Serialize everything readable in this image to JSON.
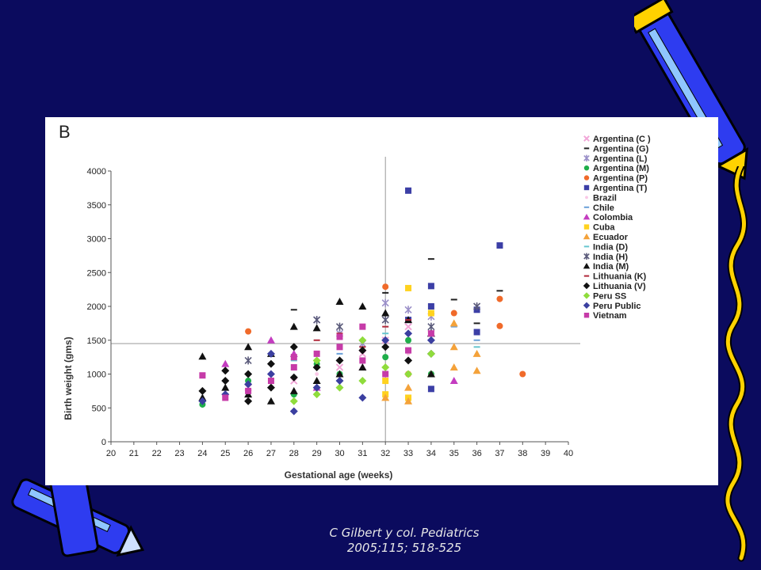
{
  "slide": {
    "background": "#0b0b5e",
    "caption_line1": "C Gilbert y col. Pediatrics",
    "caption_line2": "2005;115; 518-525",
    "decorations": [
      "crayon-pencil-top-right",
      "squiggle-right-yellow",
      "crayon-pencil-bottom-left"
    ]
  },
  "chart_data": {
    "type": "scatter",
    "panel_label": "B",
    "xlabel": "Gestational age (weeks)",
    "ylabel": "Birth weight (gms)",
    "xlim": [
      20,
      40
    ],
    "ylim": [
      0,
      4000
    ],
    "xticks": [
      "20",
      "21",
      "22",
      "23",
      "24",
      "25",
      "26",
      "27",
      "28",
      "29",
      "30",
      "31",
      "32",
      "33",
      "34",
      "35",
      "36",
      "37",
      "38",
      "39",
      "40"
    ],
    "yticks": [
      "0",
      "500",
      "1000",
      "1500",
      "2000",
      "2500",
      "3000",
      "3500",
      "4000"
    ],
    "reference_lines": {
      "vertical_x": 32,
      "horizontal_y": 1450
    },
    "legend_position": "right",
    "series": [
      {
        "name": "Argentina (C )",
        "color": "#f2a6d8",
        "marker": "cross",
        "points": [
          [
            28,
            900
          ],
          [
            30,
            1100
          ],
          [
            31,
            1300
          ],
          [
            32,
            1500
          ],
          [
            33,
            1700
          ],
          [
            34,
            1600
          ],
          [
            26,
            800
          ]
        ]
      },
      {
        "name": "Argentina (G)",
        "color": "#222222",
        "marker": "dash",
        "points": [
          [
            32,
            2200
          ],
          [
            34,
            2700
          ],
          [
            35,
            2100
          ],
          [
            37,
            2230
          ],
          [
            28,
            1950
          ],
          [
            36,
            1750
          ]
        ]
      },
      {
        "name": "Argentina (L)",
        "color": "#9a8fc8",
        "marker": "star",
        "points": [
          [
            32,
            2050
          ],
          [
            29,
            1800
          ],
          [
            33,
            1950
          ],
          [
            30,
            1600
          ],
          [
            34,
            1850
          ],
          [
            31,
            1450
          ]
        ]
      },
      {
        "name": "Argentina (M)",
        "color": "#1fae4a",
        "marker": "circle",
        "points": [
          [
            24,
            550
          ],
          [
            26,
            900
          ],
          [
            28,
            700
          ],
          [
            30,
            1000
          ],
          [
            32,
            1250
          ],
          [
            33,
            1500
          ],
          [
            34,
            1000
          ],
          [
            29,
            1150
          ]
        ]
      },
      {
        "name": "Argentina (P)",
        "color": "#f06a2a",
        "marker": "circle",
        "points": [
          [
            26,
            1630
          ],
          [
            32,
            2290
          ],
          [
            37,
            2110
          ],
          [
            37,
            1710
          ],
          [
            38,
            1000
          ],
          [
            33,
            1000
          ],
          [
            35,
            1900
          ]
        ]
      },
      {
        "name": "Argentina (T)",
        "color": "#3c3fa6",
        "marker": "square",
        "points": [
          [
            33,
            3710
          ],
          [
            37,
            2900
          ],
          [
            34,
            2300
          ],
          [
            36,
            1950
          ],
          [
            34,
            2000
          ],
          [
            34,
            780
          ],
          [
            33,
            1800
          ],
          [
            36,
            1620
          ]
        ]
      },
      {
        "name": "Brazil",
        "color": "#f9c7e6",
        "marker": "dot",
        "points": [
          [
            29,
            1000
          ],
          [
            31,
            1200
          ],
          [
            33,
            1300
          ],
          [
            35,
            1400
          ]
        ]
      },
      {
        "name": "Chile",
        "color": "#6aa0d8",
        "marker": "dash",
        "points": [
          [
            30,
            1300
          ],
          [
            32,
            1400
          ],
          [
            35,
            1700
          ],
          [
            36,
            1500
          ]
        ]
      },
      {
        "name": "Colombia",
        "color": "#c43cc0",
        "marker": "triangle",
        "points": [
          [
            25,
            1150
          ],
          [
            27,
            1500
          ],
          [
            28,
            1300
          ],
          [
            35,
            900
          ],
          [
            31,
            1100
          ],
          [
            29,
            800
          ]
        ]
      },
      {
        "name": "Cuba",
        "color": "#ffd21f",
        "marker": "square",
        "points": [
          [
            33,
            2270
          ],
          [
            32,
            700
          ],
          [
            33,
            650
          ],
          [
            34,
            1900
          ],
          [
            32,
            900
          ]
        ]
      },
      {
        "name": "Ecuador",
        "color": "#f4a23a",
        "marker": "triangle",
        "points": [
          [
            32,
            650
          ],
          [
            33,
            600
          ],
          [
            33,
            800
          ],
          [
            34,
            1000
          ],
          [
            35,
            1100
          ],
          [
            35,
            1400
          ],
          [
            36,
            1050
          ],
          [
            36,
            1300
          ],
          [
            35,
            1750
          ]
        ]
      },
      {
        "name": "India (D)",
        "color": "#67c6cf",
        "marker": "dash",
        "points": [
          [
            28,
            1200
          ],
          [
            30,
            1400
          ],
          [
            32,
            1600
          ],
          [
            34,
            1500
          ],
          [
            36,
            1400
          ]
        ]
      },
      {
        "name": "India (H)",
        "color": "#5a5a7a",
        "marker": "star",
        "points": [
          [
            26,
            1200
          ],
          [
            29,
            1800
          ],
          [
            30,
            1700
          ],
          [
            32,
            1800
          ],
          [
            36,
            2000
          ],
          [
            34,
            1700
          ]
        ]
      },
      {
        "name": "India (M)",
        "color": "#111111",
        "marker": "triangle",
        "points": [
          [
            24,
            1260
          ],
          [
            26,
            1400
          ],
          [
            27,
            1300
          ],
          [
            28,
            1700
          ],
          [
            29,
            1680
          ],
          [
            30,
            2070
          ],
          [
            31,
            2000
          ],
          [
            32,
            1900
          ],
          [
            33,
            1800
          ],
          [
            34,
            1600
          ],
          [
            24,
            650
          ],
          [
            25,
            800
          ],
          [
            26,
            700
          ],
          [
            27,
            600
          ],
          [
            28,
            750
          ],
          [
            29,
            900
          ],
          [
            30,
            1000
          ],
          [
            31,
            1100
          ],
          [
            34,
            1000
          ]
        ]
      },
      {
        "name": "Lithuania (K)",
        "color": "#b0283a",
        "marker": "dash",
        "points": [
          [
            29,
            1500
          ],
          [
            30,
            1600
          ],
          [
            31,
            1400
          ],
          [
            32,
            1700
          ],
          [
            33,
            1800
          ]
        ]
      },
      {
        "name": "Lithuania (V)",
        "color": "#111111",
        "marker": "diamond",
        "points": [
          [
            24,
            750
          ],
          [
            25,
            900
          ],
          [
            26,
            600
          ],
          [
            27,
            800
          ],
          [
            28,
            950
          ],
          [
            29,
            1100
          ],
          [
            30,
            1200
          ],
          [
            31,
            1350
          ],
          [
            32,
            1400
          ],
          [
            33,
            1200
          ],
          [
            34,
            1300
          ],
          [
            25,
            1050
          ],
          [
            26,
            1000
          ],
          [
            27,
            1150
          ],
          [
            28,
            1400
          ]
        ]
      },
      {
        "name": "Peru SS",
        "color": "#8fdc3c",
        "marker": "diamond",
        "points": [
          [
            28,
            600
          ],
          [
            29,
            700
          ],
          [
            30,
            800
          ],
          [
            31,
            900
          ],
          [
            32,
            1100
          ],
          [
            33,
            1000
          ],
          [
            34,
            1300
          ],
          [
            29,
            1200
          ],
          [
            31,
            1500
          ]
        ]
      },
      {
        "name": "Peru Public",
        "color": "#3b3fa0",
        "marker": "diamond",
        "points": [
          [
            24,
            600
          ],
          [
            25,
            700
          ],
          [
            26,
            850
          ],
          [
            27,
            1000
          ],
          [
            28,
            450
          ],
          [
            29,
            800
          ],
          [
            30,
            900
          ],
          [
            31,
            650
          ],
          [
            32,
            1500
          ],
          [
            33,
            1600
          ],
          [
            34,
            1500
          ],
          [
            27,
            1300
          ]
        ]
      },
      {
        "name": "Vietnam",
        "color": "#c63ba8",
        "marker": "square",
        "points": [
          [
            24,
            980
          ],
          [
            25,
            650
          ],
          [
            26,
            750
          ],
          [
            27,
            900
          ],
          [
            28,
            1100
          ],
          [
            29,
            1300
          ],
          [
            30,
            1400
          ],
          [
            31,
            1200
          ],
          [
            32,
            1000
          ],
          [
            33,
            1350
          ],
          [
            34,
            1600
          ],
          [
            28,
            1250
          ],
          [
            30,
            1550
          ],
          [
            31,
            1700
          ]
        ]
      }
    ]
  }
}
